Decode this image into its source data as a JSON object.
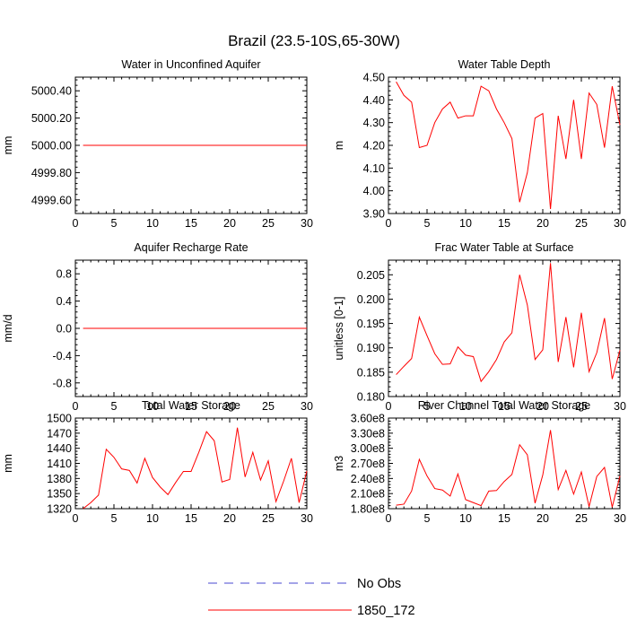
{
  "figure_title": "Brazil (23.5-10S,65-30W)",
  "legend": {
    "items": [
      {
        "label": "No Obs",
        "color": "#4a4ad0",
        "style": "dashed"
      },
      {
        "label": "1850_172",
        "color": "#ff0000",
        "style": "solid"
      }
    ]
  },
  "chart_data": [
    {
      "type": "line",
      "title": "Water in Unconfined Aquifer",
      "ylabel": "mm",
      "xlim": [
        0,
        30
      ],
      "xticks": [
        0,
        5,
        10,
        15,
        20,
        25,
        30
      ],
      "ylim": [
        4999.5,
        5000.5
      ],
      "yticks": [
        4999.6,
        4999.8,
        5000.0,
        5000.2,
        5000.4
      ],
      "yticklabels": [
        "4999.60",
        "4999.80",
        "5000.00",
        "5000.20",
        "5000.40"
      ],
      "series": [
        {
          "name": "1850_172",
          "color": "#ff0000",
          "x": [
            1,
            2,
            3,
            4,
            5,
            6,
            7,
            8,
            9,
            10,
            11,
            12,
            13,
            14,
            15,
            16,
            17,
            18,
            19,
            20,
            21,
            22,
            23,
            24,
            25,
            26,
            27,
            28,
            29,
            30
          ],
          "values": [
            5000,
            5000,
            5000,
            5000,
            5000,
            5000,
            5000,
            5000,
            5000,
            5000,
            5000,
            5000,
            5000,
            5000,
            5000,
            5000,
            5000,
            5000,
            5000,
            5000,
            5000,
            5000,
            5000,
            5000,
            5000,
            5000,
            5000,
            5000,
            5000,
            5000
          ]
        }
      ]
    },
    {
      "type": "line",
      "title": "Water Table Depth",
      "ylabel": "m",
      "xlim": [
        0,
        30
      ],
      "xticks": [
        0,
        5,
        10,
        15,
        20,
        25,
        30
      ],
      "ylim": [
        3.9,
        4.5
      ],
      "yticks": [
        3.9,
        4.0,
        4.1,
        4.2,
        4.3,
        4.4,
        4.5
      ],
      "yticklabels": [
        "3.90",
        "4.00",
        "4.10",
        "4.20",
        "4.30",
        "4.40",
        "4.50"
      ],
      "series": [
        {
          "name": "1850_172",
          "color": "#ff0000",
          "x": [
            1,
            2,
            3,
            4,
            5,
            6,
            7,
            8,
            9,
            10,
            11,
            12,
            13,
            14,
            15,
            16,
            17,
            18,
            19,
            20,
            21,
            22,
            23,
            24,
            25,
            26,
            27,
            28,
            29,
            30
          ],
          "values": [
            4.48,
            4.42,
            4.39,
            4.19,
            4.2,
            4.3,
            4.36,
            4.39,
            4.32,
            4.33,
            4.33,
            4.46,
            4.44,
            4.36,
            4.3,
            4.23,
            3.95,
            4.08,
            4.32,
            4.34,
            3.92,
            4.33,
            4.14,
            4.4,
            4.14,
            4.43,
            4.38,
            4.19,
            4.46,
            4.29
          ]
        }
      ]
    },
    {
      "type": "line",
      "title": "Aquifer Recharge Rate",
      "ylabel": "mm/d",
      "xlim": [
        0,
        30
      ],
      "xticks": [
        0,
        5,
        10,
        15,
        20,
        25,
        30
      ],
      "ylim": [
        -1.0,
        1.0
      ],
      "yticks": [
        -0.8,
        -0.4,
        0.0,
        0.4,
        0.8
      ],
      "yticklabels": [
        "-0.8",
        "-0.4",
        "0.0",
        "0.4",
        "0.8"
      ],
      "series": [
        {
          "name": "1850_172",
          "color": "#ff0000",
          "x": [
            1,
            2,
            3,
            4,
            5,
            6,
            7,
            8,
            9,
            10,
            11,
            12,
            13,
            14,
            15,
            16,
            17,
            18,
            19,
            20,
            21,
            22,
            23,
            24,
            25,
            26,
            27,
            28,
            29,
            30
          ],
          "values": [
            0,
            0,
            0,
            0,
            0,
            0,
            0,
            0,
            0,
            0,
            0,
            0,
            0,
            0,
            0,
            0,
            0,
            0,
            0,
            0,
            0,
            0,
            0,
            0,
            0,
            0,
            0,
            0,
            0,
            0
          ]
        }
      ]
    },
    {
      "type": "line",
      "title": "Frac Water Table at Surface",
      "ylabel": "unitless [0-1]",
      "xlim": [
        0,
        30
      ],
      "xticks": [
        0,
        5,
        10,
        15,
        20,
        25,
        30
      ],
      "ylim": [
        0.18,
        0.208
      ],
      "yticks": [
        0.18,
        0.185,
        0.19,
        0.195,
        0.2,
        0.205
      ],
      "yticklabels": [
        "0.180",
        "0.185",
        "0.190",
        "0.195",
        "0.200",
        "0.205"
      ],
      "series": [
        {
          "name": "1850_172",
          "color": "#ff0000",
          "x": [
            1,
            2,
            3,
            4,
            5,
            6,
            7,
            8,
            9,
            10,
            11,
            12,
            13,
            14,
            15,
            16,
            17,
            18,
            19,
            20,
            21,
            22,
            23,
            24,
            25,
            26,
            27,
            28,
            29,
            30
          ],
          "values": [
            0.1845,
            0.1862,
            0.1878,
            0.1963,
            0.1925,
            0.1888,
            0.1866,
            0.1867,
            0.1902,
            0.1885,
            0.1882,
            0.1831,
            0.1851,
            0.1876,
            0.1912,
            0.1931,
            0.205,
            0.1988,
            0.1876,
            0.1896,
            0.2074,
            0.1871,
            0.1963,
            0.186,
            0.1972,
            0.1851,
            0.189,
            0.1961,
            0.1836,
            0.1895
          ]
        }
      ]
    },
    {
      "type": "line",
      "title": "Total Water Storage",
      "ylabel": "mm",
      "xlim": [
        0,
        30
      ],
      "xticks": [
        0,
        5,
        10,
        15,
        20,
        25,
        30
      ],
      "ylim": [
        1320,
        1500
      ],
      "yticks": [
        1320,
        1350,
        1380,
        1410,
        1440,
        1470,
        1500
      ],
      "yticklabels": [
        "1320",
        "1350",
        "1380",
        "1410",
        "1440",
        "1470",
        "1500"
      ],
      "series": [
        {
          "name": "1850_172",
          "color": "#ff0000",
          "x": [
            1,
            2,
            3,
            4,
            5,
            6,
            7,
            8,
            9,
            10,
            11,
            12,
            13,
            14,
            15,
            16,
            17,
            18,
            19,
            20,
            21,
            22,
            23,
            24,
            25,
            26,
            27,
            28,
            29,
            30
          ],
          "values": [
            1320,
            1332,
            1347,
            1438,
            1422,
            1399,
            1396,
            1371,
            1420,
            1382,
            1363,
            1348,
            1372,
            1394,
            1394,
            1432,
            1473,
            1455,
            1373,
            1378,
            1481,
            1383,
            1432,
            1377,
            1415,
            1334,
            1375,
            1420,
            1332,
            1395
          ]
        }
      ]
    },
    {
      "type": "line",
      "title": "River Channel Total Water Storage",
      "ylabel": "m3",
      "xlim": [
        0,
        30
      ],
      "xticks": [
        0,
        5,
        10,
        15,
        20,
        25,
        30
      ],
      "ylim": [
        180000000,
        360000000
      ],
      "yticks": [
        180000000,
        210000000,
        240000000,
        270000000,
        300000000,
        330000000,
        360000000
      ],
      "yticklabels": [
        "1.80e8",
        "2.10e8",
        "2.40e8",
        "2.70e8",
        "3.00e8",
        "3.30e8",
        "3.60e8"
      ],
      "series": [
        {
          "name": "1850_172",
          "color": "#ff0000",
          "x": [
            1,
            2,
            3,
            4,
            5,
            6,
            7,
            8,
            9,
            10,
            11,
            12,
            13,
            14,
            15,
            16,
            17,
            18,
            19,
            20,
            21,
            22,
            23,
            24,
            25,
            26,
            27,
            28,
            29,
            30
          ],
          "values": [
            187000000,
            189000000,
            215000000,
            278000000,
            245000000,
            220000000,
            217000000,
            205000000,
            249000000,
            198000000,
            192000000,
            186000000,
            215000000,
            216000000,
            234000000,
            248000000,
            307000000,
            287000000,
            191000000,
            247000000,
            336000000,
            218000000,
            256000000,
            209000000,
            253000000,
            184000000,
            244000000,
            262000000,
            183000000,
            245000000
          ]
        }
      ]
    }
  ]
}
